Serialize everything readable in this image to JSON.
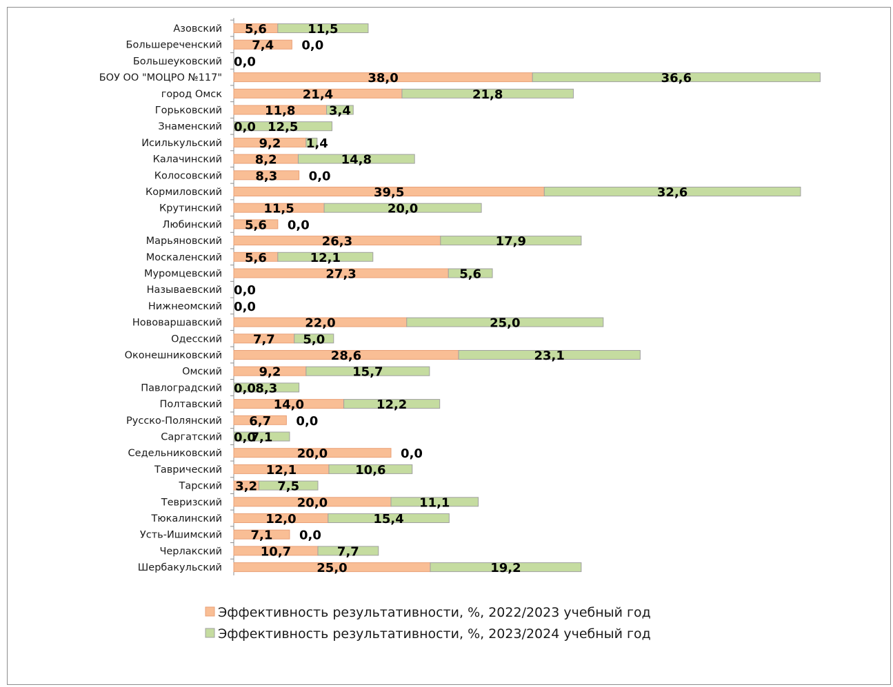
{
  "chart_data": {
    "type": "bar",
    "orientation": "horizontal",
    "stacked": true,
    "title": "",
    "xlabel": "",
    "ylabel": "",
    "xlim": [
      0,
      78
    ],
    "grid": false,
    "legend_position": "bottom",
    "categories": [
      "Азовский",
      "Большереченский",
      "Большеуковский",
      "БОУ ОО \"МОЦРО №117\"",
      "город Омск",
      "Горьковский",
      "Знаменский",
      "Исилькульский",
      "Калачинский",
      "Колосовский",
      "Кормиловский",
      "Крутинский",
      "Любинский",
      "Марьяновский",
      "Москаленский",
      "Муромцевский",
      "Называевский",
      "Нижнеомский",
      "Нововаршавский",
      "Одесский",
      "Оконешниковский",
      "Омский",
      "Павлоградский",
      "Полтавский",
      "Русско-Полянский",
      "Саргатский",
      "Седельниковский",
      "Таврический",
      "Тарский",
      "Тевризский",
      "Тюкалинский",
      "Усть-Ишимский",
      "Черлакский",
      "Шербакульский"
    ],
    "series": [
      {
        "name": "Эффективность результативности, %, 2022/2023 учебный год",
        "color": "#f9be95",
        "stroke": "#e9a077",
        "values": [
          5.6,
          7.4,
          0.0,
          38.0,
          21.4,
          11.8,
          0.0,
          9.2,
          8.2,
          8.3,
          39.5,
          11.5,
          5.6,
          26.3,
          5.6,
          27.3,
          0.0,
          0.0,
          22.0,
          7.7,
          28.6,
          9.2,
          0.0,
          14.0,
          6.7,
          0.0,
          20.0,
          12.1,
          3.2,
          20.0,
          12.0,
          7.1,
          10.7,
          25.0
        ],
        "labels": [
          "5,6",
          "7,4",
          "0,0",
          "38,0",
          "21,4",
          "11,8",
          "0,0",
          "9,2",
          "8,2",
          "8,3",
          "39,5",
          "11,5",
          "5,6",
          "26,3",
          "5,6",
          "27,3",
          "0,0",
          "0,0",
          "22,0",
          "7,7",
          "28,6",
          "9,2",
          "0,0",
          "14,0",
          "6,7",
          "0,0",
          "20,0",
          "12,1",
          "3,2",
          "20,0",
          "12,0",
          "7,1",
          "10,7",
          "25,0"
        ]
      },
      {
        "name": "Эффективность результативности, %, 2023/2024 учебный год",
        "color": "#c5dca0",
        "stroke": "#a0a0a0",
        "values": [
          11.5,
          0.0,
          0.0,
          36.6,
          21.8,
          3.4,
          12.5,
          1.4,
          14.8,
          0.0,
          32.6,
          20.0,
          0.0,
          17.9,
          12.1,
          5.6,
          0.0,
          0.0,
          25.0,
          5.0,
          23.1,
          15.7,
          8.3,
          12.2,
          0.0,
          7.1,
          0.0,
          10.6,
          7.5,
          11.1,
          15.4,
          0.0,
          7.7,
          19.2
        ],
        "labels": [
          "11,5",
          "0,0",
          "",
          "36,6",
          "21,8",
          "3,4",
          "12,5",
          "1,4",
          "14,8",
          "0,0",
          "32,6",
          "20,0",
          "0,0",
          "17,9",
          "12,1",
          "5,6",
          "",
          "",
          "25,0",
          "5,0",
          "23,1",
          "15,7",
          "8,3",
          "12,2",
          "0,0",
          "7,1",
          "0,0",
          "10,6",
          "7,5",
          "11,1",
          "15,4",
          "0,0",
          "7,7",
          "19,2"
        ]
      }
    ]
  }
}
